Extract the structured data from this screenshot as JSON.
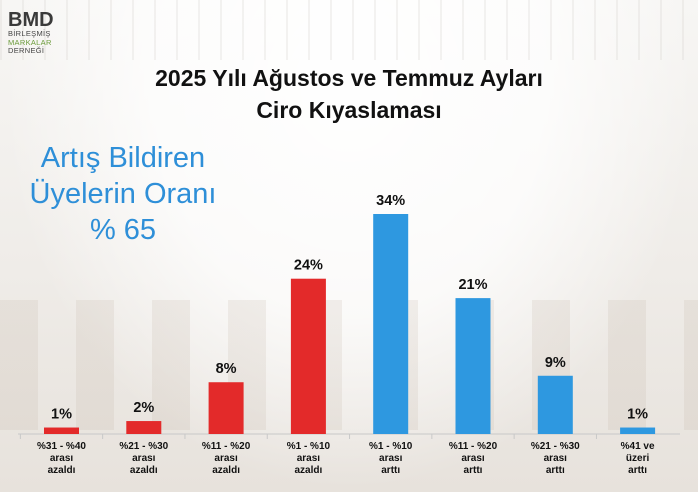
{
  "logo": {
    "brand": "BMD",
    "line1": "BİRLEŞMİŞ",
    "line2": "MARKALAR",
    "line3": "DERNEĞİ"
  },
  "title_line1": "2025 Yılı Ağustos ve Temmuz Ayları",
  "title_line2": "Ciro Kıyaslaması",
  "ratio": {
    "line1": "Artış Bildiren",
    "line2": "Üyelerin Oranı",
    "line3": "% 65"
  },
  "chart_data": {
    "type": "bar",
    "title": "2025 Yılı Ağustos ve Temmuz Ayları Ciro Kıyaslaması",
    "categories": [
      [
        "%31 - %40",
        "arası",
        "azaldı"
      ],
      [
        "%21 - %30",
        "arası",
        "azaldı"
      ],
      [
        "%11 - %20",
        "arası",
        "azaldı"
      ],
      [
        "%1 - %10",
        "arası",
        "azaldı"
      ],
      [
        "%1 - %10",
        "arası",
        "arttı"
      ],
      [
        "%11 - %20",
        "arası",
        "arttı"
      ],
      [
        "%21 - %30",
        "arası",
        "arttı"
      ],
      [
        "%41 ve",
        "üzeri",
        "arttı"
      ]
    ],
    "values": [
      1,
      2,
      8,
      24,
      34,
      21,
      9,
      1
    ],
    "value_labels": [
      "1%",
      "2%",
      "8%",
      "24%",
      "34%",
      "21%",
      "9%",
      "1%"
    ],
    "colors": [
      "#e32a2a",
      "#e32a2a",
      "#e32a2a",
      "#e32a2a",
      "#2e98e0",
      "#2e98e0",
      "#2e98e0",
      "#2e98e0"
    ],
    "ylim": [
      0,
      34
    ],
    "grid": false,
    "legend": "none"
  }
}
